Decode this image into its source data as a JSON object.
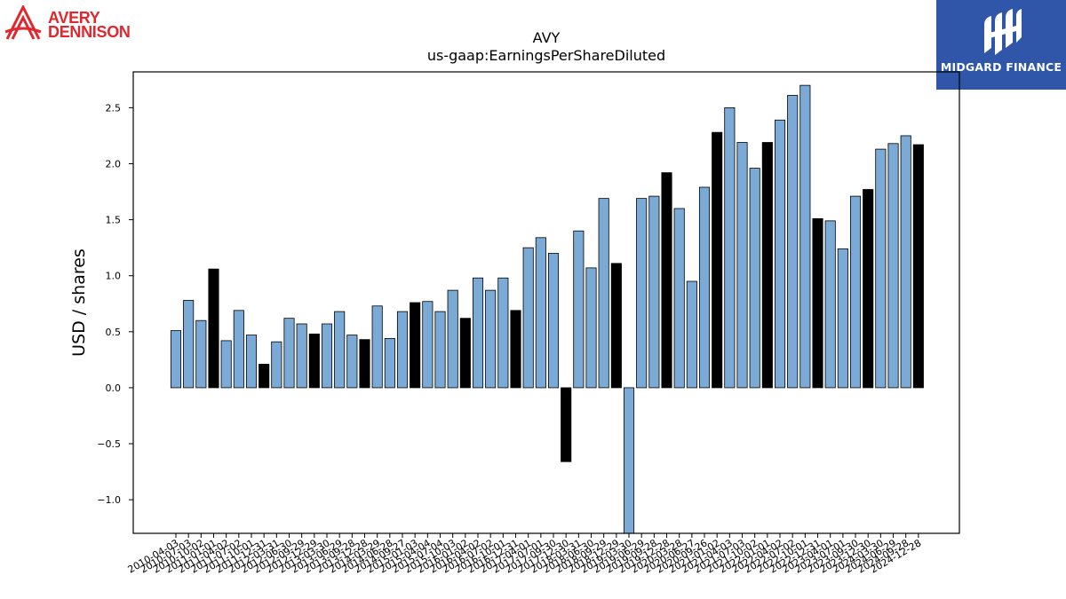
{
  "logos": {
    "left": {
      "line1": "AVERY",
      "line2": "DENNISON",
      "color": "#e0272c"
    },
    "right": {
      "name": "MIDGARD FINANCE",
      "background": "#2f56a8"
    }
  },
  "chart_data": {
    "type": "bar",
    "title": "AVY",
    "subtitle": "us-gaap:EarningsPerShareDiluted",
    "xlabel": "",
    "ylabel": "USD / shares",
    "ylim": [
      -1.3,
      2.82
    ],
    "yticks": [
      -1.0,
      -0.5,
      0.0,
      0.5,
      1.0,
      1.5,
      2.0,
      2.5
    ],
    "grid": false,
    "colors": {
      "quarterly": "#7aaad5",
      "annual": "#000000",
      "edge": "#000000"
    },
    "categories": [
      "2010-04-03",
      "2010-07-03",
      "2010-10-02",
      "2011-01-01",
      "2011-04-02",
      "2011-07-02",
      "2011-10-01",
      "2011-12-31",
      "2012-03-31",
      "2012-06-30",
      "2012-09-29",
      "2012-12-29",
      "2013-03-30",
      "2013-06-29",
      "2013-09-28",
      "2013-12-28",
      "2014-03-29",
      "2014-06-28",
      "2014-09-27",
      "2015-01-03",
      "2015-04-04",
      "2015-07-04",
      "2015-10-03",
      "2016-01-02",
      "2016-04-02",
      "2016-07-02",
      "2016-10-01",
      "2016-12-31",
      "2017-04-01",
      "2017-07-01",
      "2017-09-30",
      "2017-12-30",
      "2018-03-31",
      "2018-06-30",
      "2018-09-29",
      "2018-12-29",
      "2019-03-30",
      "2019-06-29",
      "2019-09-28",
      "2019-12-28",
      "2020-03-28",
      "2020-06-27",
      "2020-09-26",
      "2021-01-02",
      "2021-04-03",
      "2021-07-03",
      "2021-10-02",
      "2022-01-01",
      "2022-04-02",
      "2022-07-02",
      "2022-10-01",
      "2022-12-31",
      "2023-04-01",
      "2023-07-01",
      "2023-09-30",
      "2023-12-30",
      "2024-03-30",
      "2024-06-29",
      "2024-09-28",
      "2024-12-28"
    ],
    "values": [
      0.51,
      0.78,
      0.6,
      1.06,
      0.42,
      0.69,
      0.47,
      0.21,
      0.41,
      0.62,
      0.57,
      0.48,
      0.57,
      0.68,
      0.47,
      0.43,
      0.73,
      0.44,
      0.68,
      0.76,
      0.77,
      0.68,
      0.87,
      0.62,
      0.98,
      0.87,
      0.98,
      0.69,
      1.25,
      1.34,
      1.2,
      -0.66,
      1.4,
      1.07,
      1.69,
      1.11,
      -1.3,
      1.69,
      1.71,
      1.92,
      1.6,
      0.95,
      1.79,
      2.28,
      2.5,
      2.19,
      1.96,
      2.19,
      2.39,
      2.61,
      2.7,
      1.51,
      1.49,
      1.24,
      1.71,
      1.77,
      2.13,
      2.18,
      2.25,
      2.17
    ],
    "annual": [
      false,
      false,
      false,
      true,
      false,
      false,
      false,
      true,
      false,
      false,
      false,
      true,
      false,
      false,
      false,
      true,
      false,
      false,
      false,
      true,
      false,
      false,
      false,
      true,
      false,
      false,
      false,
      true,
      false,
      false,
      false,
      true,
      false,
      false,
      false,
      true,
      false,
      false,
      false,
      true,
      false,
      false,
      false,
      true,
      false,
      false,
      false,
      true,
      false,
      false,
      false,
      true,
      false,
      false,
      false,
      true,
      false,
      false,
      false,
      true
    ]
  }
}
